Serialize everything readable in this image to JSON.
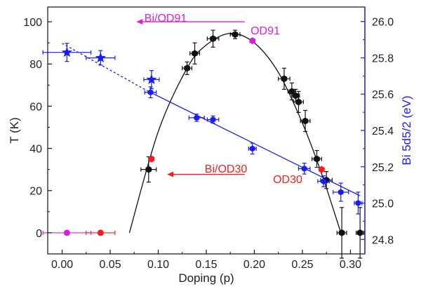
{
  "chart_data": {
    "type": "scatter",
    "xlabel": "Doping (p)",
    "ylabel_left": "T (K)",
    "ylabel_right": "Bi 5d5/2 (eV)",
    "xlim": [
      -0.015,
      0.315
    ],
    "ylim_left": [
      -10,
      107
    ],
    "ylim_right": [
      24.72,
      26.08
    ],
    "x_ticks": [
      0.0,
      0.05,
      0.1,
      0.15,
      0.2,
      0.25,
      0.3
    ],
    "x_tick_labels": [
      "0.00",
      "0.05",
      "0.10",
      "0.15",
      "0.20",
      "0.25",
      "0.30"
    ],
    "y_left_ticks": [
      0,
      20,
      40,
      60,
      80,
      100
    ],
    "y_left_tick_labels": [
      "0",
      "20",
      "40",
      "60",
      "80",
      "100"
    ],
    "y_right_ticks": [
      24.8,
      25.0,
      25.2,
      25.4,
      25.6,
      25.8,
      26.0
    ],
    "y_right_tick_labels": [
      "24.8",
      "25.0",
      "25.2",
      "25.4",
      "25.6",
      "25.8",
      "26.0"
    ],
    "colors": {
      "black": "#111111",
      "blue": "#1a1aff",
      "red": "#ff1a1a",
      "magenta": "#dd1ddd"
    },
    "tc_points": [
      {
        "x": 0.09,
        "y": 30,
        "xerr": 0.008,
        "yerr": 6
      },
      {
        "x": 0.13,
        "y": 78,
        "xerr": 0.005,
        "yerr": 3
      },
      {
        "x": 0.138,
        "y": 85,
        "xerr": 0.005,
        "yerr": 5
      },
      {
        "x": 0.157,
        "y": 92,
        "xerr": 0.006,
        "yerr": 4
      },
      {
        "x": 0.18,
        "y": 94,
        "xerr": 0.005,
        "yerr": 2
      },
      {
        "x": 0.231,
        "y": 73,
        "xerr": 0.006,
        "yerr": 5
      },
      {
        "x": 0.239,
        "y": 67,
        "xerr": 0.004,
        "yerr": 4
      },
      {
        "x": 0.243,
        "y": 65,
        "xerr": 0.004,
        "yerr": 3
      },
      {
        "x": 0.246,
        "y": 62,
        "xerr": 0.005,
        "yerr": 5
      },
      {
        "x": 0.253,
        "y": 53,
        "xerr": 0.005,
        "yerr": 5
      },
      {
        "x": 0.265,
        "y": 35,
        "xerr": 0.005,
        "yerr": 4
      },
      {
        "x": 0.275,
        "y": 25,
        "xerr": 0.006,
        "yerr": 4
      },
      {
        "x": 0.291,
        "y": 0,
        "xerr": 0.005,
        "yerr": 12
      },
      {
        "x": 0.31,
        "y": 0,
        "xerr": 0.004,
        "yerr": 12
      }
    ],
    "tc_curve": [
      [
        0.07,
        0
      ],
      [
        0.1,
        48
      ],
      [
        0.13,
        78
      ],
      [
        0.15,
        89
      ],
      [
        0.175,
        94.5
      ],
      [
        0.2,
        90
      ],
      [
        0.225,
        76
      ],
      [
        0.25,
        52
      ],
      [
        0.27,
        28
      ],
      [
        0.29,
        0
      ]
    ],
    "special_t_points": [
      {
        "series": "OD91",
        "x": 0.198,
        "y": 91,
        "color": "magenta"
      },
      {
        "series": "OD30",
        "x": 0.27,
        "y": 30,
        "color": "red"
      },
      {
        "series": "Bi/OD30",
        "x": 0.093,
        "y": 35,
        "color": "red"
      }
    ],
    "zero_points": [
      {
        "x": 0.005,
        "y": 0,
        "xerr": 0.025,
        "color": "magenta"
      },
      {
        "x": 0.04,
        "y": 0,
        "xerr": 0.015,
        "color": "red"
      }
    ],
    "bi_points": [
      {
        "x": 0.092,
        "y": 25.61,
        "xerr": 0.006,
        "yerr": 0.03
      },
      {
        "x": 0.14,
        "y": 25.47,
        "xerr": 0.008,
        "yerr": 0.02
      },
      {
        "x": 0.157,
        "y": 25.46,
        "xerr": 0.006,
        "yerr": 0.02
      },
      {
        "x": 0.198,
        "y": 25.3,
        "xerr": 0.004,
        "yerr": 0.03
      },
      {
        "x": 0.252,
        "y": 25.19,
        "xerr": 0.006,
        "yerr": 0.03
      },
      {
        "x": 0.272,
        "y": 25.12,
        "xerr": 0.006,
        "yerr": 0.03
      },
      {
        "x": 0.29,
        "y": 25.06,
        "xerr": 0.008,
        "yerr": 0.05
      },
      {
        "x": 0.308,
        "y": 25.0,
        "xerr": 0.004,
        "yerr": 0.06
      }
    ],
    "bi_stars": [
      {
        "x": 0.005,
        "y": 25.83,
        "xerr": 0.025,
        "yerr": 0.05
      },
      {
        "x": 0.04,
        "y": 25.8,
        "xerr": 0.015,
        "yerr": 0.04
      },
      {
        "x": 0.093,
        "y": 25.68,
        "xerr": 0.008,
        "yerr": 0.05
      }
    ],
    "bi_fit_dashed": [
      [
        0.0,
        25.88
      ],
      [
        0.088,
        25.62
      ]
    ],
    "bi_fit_solid": [
      [
        0.088,
        25.62
      ],
      [
        0.31,
        25.04
      ]
    ],
    "annotations": {
      "bi_od91": "Bi/OD91",
      "od91": "OD91",
      "bi_od30": "Bi/OD30",
      "od30": "OD30"
    },
    "arrows": [
      {
        "from": [
          0.19,
          100
        ],
        "to": [
          0.078,
          100
        ],
        "color": "magenta"
      },
      {
        "from": [
          0.19,
          27.7
        ],
        "to": [
          0.11,
          27.7
        ],
        "color": "red"
      }
    ]
  }
}
